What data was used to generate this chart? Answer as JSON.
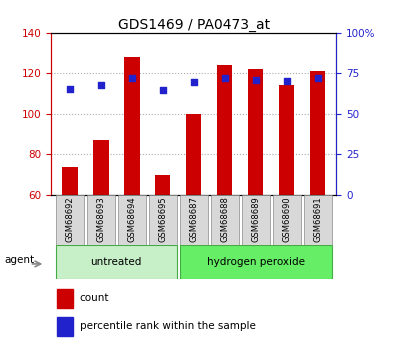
{
  "title": "GDS1469 / PA0473_at",
  "samples": [
    "GSM68692",
    "GSM68693",
    "GSM68694",
    "GSM68695",
    "GSM68687",
    "GSM68688",
    "GSM68689",
    "GSM68690",
    "GSM68691"
  ],
  "groups": [
    "untreated",
    "untreated",
    "untreated",
    "untreated",
    "hydrogen peroxide",
    "hydrogen peroxide",
    "hydrogen peroxide",
    "hydrogen peroxide",
    "hydrogen peroxide"
  ],
  "counts": [
    74,
    87,
    128,
    70,
    100,
    124,
    122,
    114,
    121
  ],
  "percentiles": [
    65.5,
    68.0,
    72.0,
    64.5,
    69.5,
    72.0,
    71.0,
    70.5,
    72.0
  ],
  "ylim_left": [
    60,
    140
  ],
  "ylim_right": [
    0,
    100
  ],
  "yticks_left": [
    60,
    80,
    100,
    120,
    140
  ],
  "yticks_right": [
    0,
    25,
    50,
    75,
    100
  ],
  "bar_color": "#cc0000",
  "scatter_color": "#2222cc",
  "bar_bottom": 60,
  "group_colors": {
    "untreated": "#c8f0c8",
    "hydrogen peroxide": "#66ee66"
  },
  "agent_label": "agent",
  "legend_count": "count",
  "legend_percentile": "percentile rank within the sample",
  "title_fontsize": 10,
  "tick_fontsize": 7.5,
  "label_fontsize": 7.5
}
